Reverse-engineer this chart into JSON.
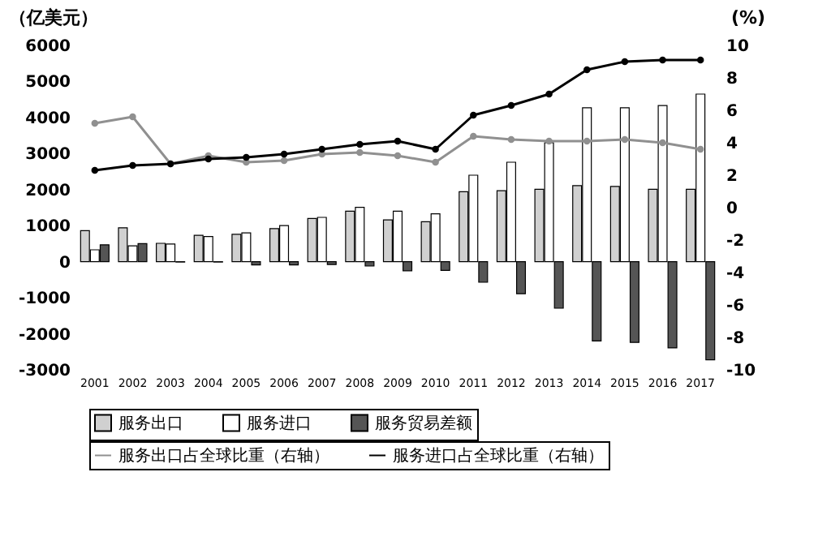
{
  "chart_data": {
    "type": "bar",
    "ylabel": "（亿美元）",
    "y2label": "(%)",
    "categories": [
      "2001",
      "2002",
      "2003",
      "2004",
      "2005",
      "2006",
      "2007",
      "2008",
      "2009",
      "2010",
      "2011",
      "2012",
      "2013",
      "2014",
      "2015",
      "2016",
      "2017"
    ],
    "series": [
      {
        "name": "服务出口",
        "type": "bar",
        "color": "#d0d0d0",
        "values": [
          860,
          940,
          510,
          730,
          760,
          920,
          1200,
          1400,
          1160,
          1110,
          1940,
          1970,
          2010,
          2110,
          2090,
          2010,
          2010
        ]
      },
      {
        "name": "服务进口",
        "type": "bar",
        "color": "#ffffff",
        "values": [
          330,
          440,
          490,
          700,
          800,
          1000,
          1230,
          1510,
          1400,
          1330,
          2400,
          2760,
          3300,
          4270,
          4270,
          4330,
          4650
        ]
      },
      {
        "name": "服务贸易差额",
        "type": "bar",
        "color": "#555555",
        "values": [
          470,
          500,
          -10,
          -10,
          -90,
          -90,
          -80,
          -120,
          -250,
          -240,
          -570,
          -890,
          -1290,
          -2200,
          -2240,
          -2390,
          -2720
        ]
      },
      {
        "name": "服务出口占全球比重（右轴）",
        "type": "line",
        "axis": "y2",
        "color": "#909090",
        "values": [
          5.2,
          5.6,
          2.7,
          3.2,
          2.8,
          2.9,
          3.3,
          3.4,
          3.2,
          2.8,
          4.4,
          4.2,
          4.1,
          4.1,
          4.2,
          4.0,
          3.6
        ]
      },
      {
        "name": "服务进口占全球比重（右轴）",
        "type": "line",
        "axis": "y2",
        "color": "#000000",
        "values": [
          2.3,
          2.6,
          2.7,
          3.0,
          3.1,
          3.3,
          3.6,
          3.9,
          4.1,
          3.6,
          5.7,
          6.3,
          7.0,
          8.5,
          9.0,
          9.1,
          9.1
        ]
      }
    ],
    "ylim": [
      -3000,
      6000
    ],
    "yticks": [
      -3000,
      -2000,
      -1000,
      0,
      1000,
      2000,
      3000,
      4000,
      5000,
      6000
    ],
    "y2lim": [
      -10,
      10
    ],
    "y2ticks": [
      -10,
      -8,
      -6,
      -4,
      -2,
      0,
      2,
      4,
      6,
      8,
      10
    ],
    "marker": "circle",
    "line_style": "solid",
    "grid": false,
    "legend": "bottom"
  }
}
